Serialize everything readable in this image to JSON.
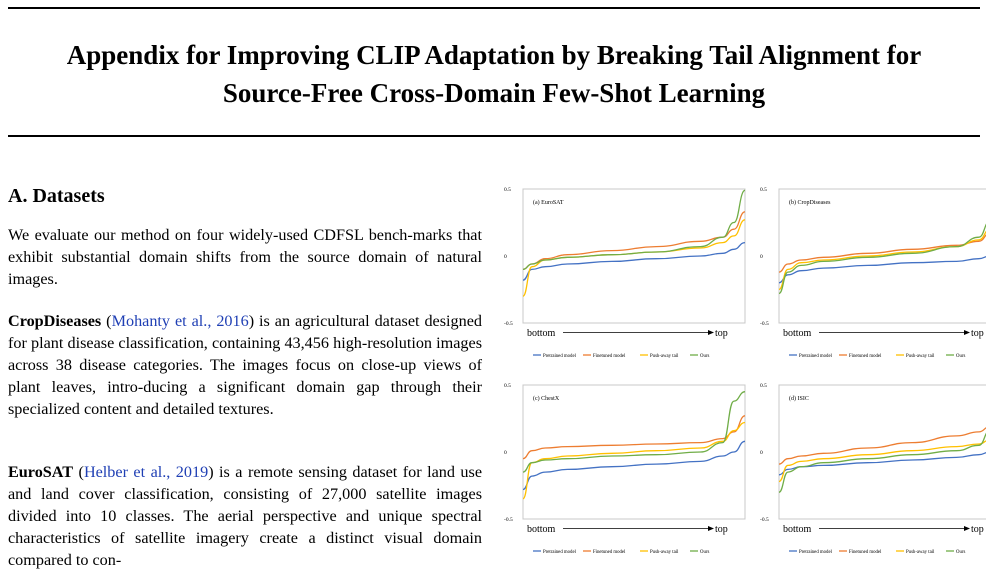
{
  "paper": {
    "title_line1": "Appendix for Improving CLIP Adaptation by Breaking Tail Alignment for",
    "title_line2": "Source-Free Cross-Domain Few-Shot Learning",
    "section_heading": "A. Datasets",
    "intro": "We evaluate our method on four widely-used CDFSL bench-marks that exhibit substantial domain shifts from the source domain of natural images.",
    "crop": {
      "name": "CropDiseases",
      "citation": "Mohanty et al., 2016",
      "text": "is an agricultural dataset designed for plant disease classification, containing 43,456 high-resolution images across 38 disease categories. The images focus on close-up views of plant leaves, intro-ducing a significant domain gap through their specialized content and detailed textures."
    },
    "eurosat": {
      "name": "EuroSAT",
      "citation": "Helber et al., 2019",
      "text": "is a remote sensing dataset for land use and land cover classification, consisting of 27,000 satellite images divided into 10 classes. The aerial perspective and unique spectral characteristics of satellite imagery create a distinct visual domain compared to con-"
    }
  },
  "colors": {
    "Pretrained model": "#4472c4",
    "Finetuned model": "#ed7d31",
    "Push-away tail": "#ffc000",
    "Ours": "#70ad47",
    "cite": "#1f3fb4"
  },
  "chart_data": [
    {
      "type": "line",
      "title": "(a) EuroSAT",
      "xlabel_left": "bottom",
      "xlabel_right": "top",
      "ylim": [
        -0.5,
        0.5
      ],
      "y_ticks": [
        "0.5",
        "0",
        "-0.5"
      ],
      "x": [
        0,
        0.04,
        0.1,
        0.2,
        0.4,
        0.6,
        0.8,
        0.9,
        0.95,
        1
      ],
      "series": [
        {
          "name": "Pretrained model",
          "values": [
            -0.18,
            -0.1,
            -0.08,
            -0.06,
            -0.04,
            -0.02,
            0.0,
            0.02,
            0.05,
            0.1
          ]
        },
        {
          "name": "Finetuned model",
          "values": [
            -0.1,
            -0.06,
            -0.02,
            0.01,
            0.04,
            0.07,
            0.11,
            0.14,
            0.2,
            0.33
          ]
        },
        {
          "name": "Push-away tail",
          "values": [
            -0.3,
            -0.08,
            -0.03,
            -0.01,
            0.01,
            0.03,
            0.06,
            0.1,
            0.15,
            0.27
          ]
        },
        {
          "name": "Ours",
          "values": [
            -0.1,
            -0.06,
            -0.03,
            -0.01,
            0.01,
            0.03,
            0.07,
            0.14,
            0.25,
            0.49
          ]
        }
      ]
    },
    {
      "type": "line",
      "title": "(b) CropDiseases",
      "xlabel_left": "bottom",
      "xlabel_right": "top",
      "ylim": [
        -0.5,
        0.5
      ],
      "y_ticks": [
        "0.5",
        "0",
        "-0.5"
      ],
      "x": [
        0,
        0.04,
        0.1,
        0.2,
        0.4,
        0.6,
        0.8,
        0.9,
        0.95,
        1
      ],
      "series": [
        {
          "name": "Pretrained model",
          "values": [
            -0.2,
            -0.14,
            -0.11,
            -0.09,
            -0.07,
            -0.05,
            -0.04,
            -0.02,
            0.0,
            0.08
          ]
        },
        {
          "name": "Finetuned model",
          "values": [
            -0.12,
            -0.06,
            -0.03,
            -0.01,
            0.02,
            0.05,
            0.08,
            0.11,
            0.17,
            0.28
          ]
        },
        {
          "name": "Push-away tail",
          "values": [
            -0.25,
            -0.1,
            -0.05,
            -0.03,
            0.0,
            0.03,
            0.07,
            0.12,
            0.2,
            0.32
          ]
        },
        {
          "name": "Ours",
          "values": [
            -0.28,
            -0.12,
            -0.07,
            -0.04,
            -0.01,
            0.02,
            0.07,
            0.14,
            0.26,
            0.45
          ]
        }
      ]
    },
    {
      "type": "line",
      "title": "(c) ChestX",
      "xlabel_left": "bottom",
      "xlabel_right": "top",
      "ylim": [
        -0.5,
        0.5
      ],
      "y_ticks": [
        "0.5",
        "0",
        "-0.5"
      ],
      "x": [
        0,
        0.04,
        0.1,
        0.2,
        0.4,
        0.6,
        0.8,
        0.9,
        0.95,
        1
      ],
      "series": [
        {
          "name": "Pretrained model",
          "values": [
            -0.28,
            -0.18,
            -0.15,
            -0.13,
            -0.11,
            -0.09,
            -0.07,
            -0.03,
            0.0,
            0.08
          ]
        },
        {
          "name": "Finetuned model",
          "values": [
            -0.05,
            0.01,
            0.03,
            0.04,
            0.05,
            0.06,
            0.07,
            0.1,
            0.15,
            0.27
          ]
        },
        {
          "name": "Push-away tail",
          "values": [
            -0.35,
            -0.08,
            -0.05,
            -0.03,
            -0.01,
            0.01,
            0.03,
            0.08,
            0.16,
            0.22
          ]
        },
        {
          "name": "Ours",
          "values": [
            -0.15,
            -0.08,
            -0.06,
            -0.05,
            -0.03,
            -0.02,
            0.0,
            0.07,
            0.38,
            0.45
          ]
        }
      ]
    },
    {
      "type": "line",
      "title": "(d) ISIC",
      "xlabel_left": "bottom",
      "xlabel_right": "top",
      "ylim": [
        -0.5,
        0.5
      ],
      "y_ticks": [
        "0.5",
        "0",
        "-0.5"
      ],
      "x": [
        0,
        0.04,
        0.1,
        0.2,
        0.4,
        0.6,
        0.8,
        0.9,
        0.95,
        1
      ],
      "series": [
        {
          "name": "Pretrained model",
          "values": [
            -0.17,
            -0.13,
            -0.11,
            -0.1,
            -0.08,
            -0.06,
            -0.04,
            -0.02,
            0.0,
            0.06
          ]
        },
        {
          "name": "Finetuned model",
          "values": [
            -0.09,
            -0.05,
            -0.03,
            -0.01,
            0.03,
            0.07,
            0.12,
            0.15,
            0.19,
            0.26
          ]
        },
        {
          "name": "Push-away tail",
          "values": [
            -0.22,
            -0.1,
            -0.07,
            -0.05,
            -0.02,
            0.01,
            0.04,
            0.06,
            0.09,
            0.18
          ]
        },
        {
          "name": "Ours",
          "values": [
            -0.3,
            -0.15,
            -0.11,
            -0.08,
            -0.05,
            -0.02,
            0.01,
            0.05,
            0.16,
            0.37
          ]
        }
      ]
    }
  ]
}
